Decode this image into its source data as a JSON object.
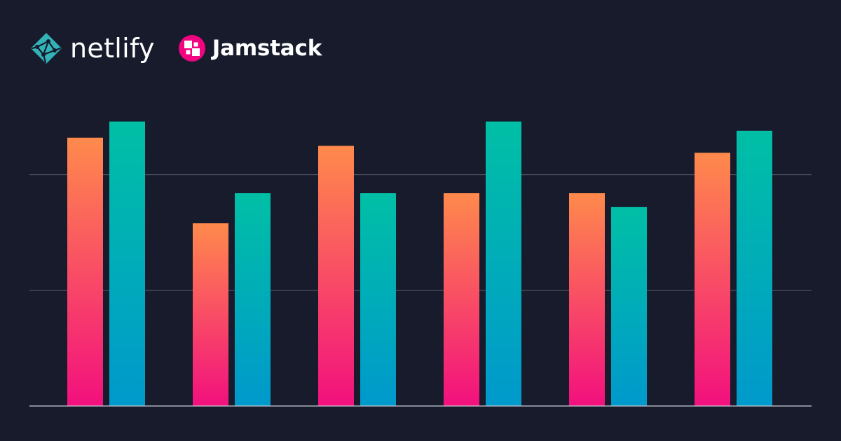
{
  "brands": {
    "netlify": {
      "name": "netlify",
      "icon": "netlify-logo-icon",
      "color": "#32b3b8"
    },
    "jamstack": {
      "name": "Jamstack",
      "icon": "jamstack-logo-icon",
      "color": "#f0047f"
    }
  },
  "colors": {
    "background": "#171b2c",
    "series_a_top": "#ff8a4c",
    "series_a_bottom": "#f2107e",
    "series_b_top": "#00bfa5",
    "series_b_bottom": "#0099cc",
    "grid": "#5a5e6e"
  },
  "chart_data": {
    "type": "bar",
    "title": "",
    "xlabel": "",
    "ylabel": "",
    "categories": [
      "",
      "",
      "",
      "",
      "",
      ""
    ],
    "series": [
      {
        "values": [
          2.32,
          1.58,
          2.25,
          1.84,
          1.84,
          2.19
        ]
      },
      {
        "values": [
          2.46,
          1.84,
          1.84,
          2.46,
          1.72,
          2.38
        ]
      }
    ],
    "ylim": [
      0,
      2.5
    ],
    "gridlines": [
      1,
      2
    ],
    "grid": true,
    "legend": "none"
  }
}
